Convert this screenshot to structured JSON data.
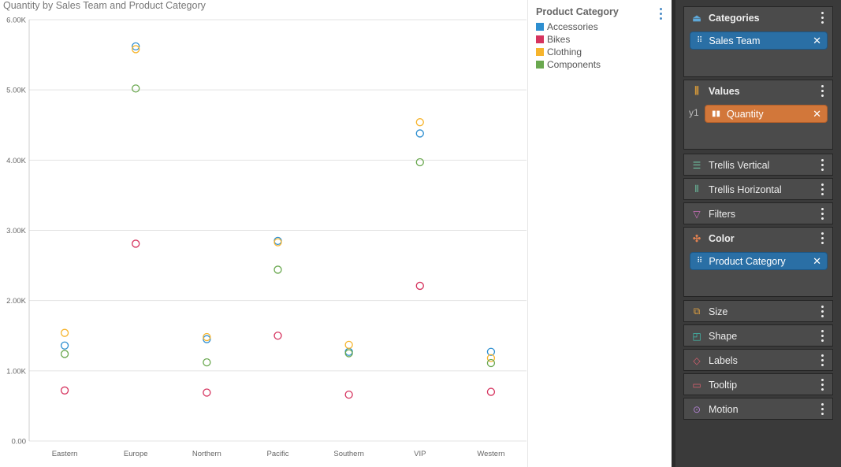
{
  "chart_data": {
    "type": "scatter",
    "title": "Quantity by Sales Team and Product Category",
    "categories": [
      "Eastern",
      "Europe",
      "Northern",
      "Pacific",
      "Southern",
      "VIP",
      "Western"
    ],
    "yticks": [
      "0.00",
      "1.00K",
      "2.00K",
      "3.00K",
      "4.00K",
      "5.00K",
      "6.00K"
    ],
    "ylim": [
      0,
      6000
    ],
    "grid": true,
    "legend_title": "Product Category",
    "legend_position": "right",
    "series": [
      {
        "name": "Accessories",
        "color": "#2e8fd0",
        "values": [
          1360,
          5620,
          1450,
          2850,
          1270,
          4380,
          1270
        ]
      },
      {
        "name": "Bikes",
        "color": "#d6345f",
        "values": [
          720,
          2810,
          690,
          1500,
          660,
          2210,
          700
        ]
      },
      {
        "name": "Clothing",
        "color": "#f6b42d",
        "values": [
          1540,
          5580,
          1480,
          2830,
          1370,
          4540,
          1180
        ]
      },
      {
        "name": "Components",
        "color": "#6aa84f",
        "values": [
          1240,
          5020,
          1120,
          2440,
          1250,
          3970,
          1110
        ]
      }
    ]
  },
  "panel": {
    "categories": {
      "label": "Categories",
      "field": "Sales Team"
    },
    "values": {
      "label": "Values",
      "axis": "y1",
      "field": "Quantity"
    },
    "trellis_vertical": "Trellis Vertical",
    "trellis_horizontal": "Trellis Horizontal",
    "filters": "Filters",
    "color": {
      "label": "Color",
      "field": "Product Category"
    },
    "size": "Size",
    "shape": "Shape",
    "labels": "Labels",
    "tooltip": "Tooltip",
    "motion": "Motion",
    "colors": {
      "field_pill": "#2a6fa5",
      "measure_pill": "#d2773a"
    }
  }
}
